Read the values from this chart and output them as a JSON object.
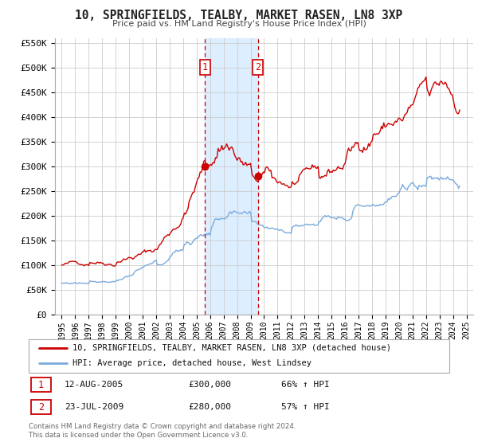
{
  "title": "10, SPRINGFIELDS, TEALBY, MARKET RASEN, LN8 3XP",
  "subtitle": "Price paid vs. HM Land Registry's House Price Index (HPI)",
  "legend_line1": "10, SPRINGFIELDS, TEALBY, MARKET RASEN, LN8 3XP (detached house)",
  "legend_line2": "HPI: Average price, detached house, West Lindsey",
  "transaction1_label": "1",
  "transaction1_date": "12-AUG-2005",
  "transaction1_price": "£300,000",
  "transaction1_hpi": "66% ↑ HPI",
  "transaction1_year": 2005.617,
  "transaction1_value": 300000,
  "transaction2_label": "2",
  "transaction2_date": "23-JUL-2009",
  "transaction2_price": "£280,000",
  "transaction2_hpi": "57% ↑ HPI",
  "transaction2_year": 2009.556,
  "transaction2_value": 280000,
  "red_color": "#cc0000",
  "blue_color": "#7aaadd",
  "highlight_color": "#ddeeff",
  "background_color": "#ffffff",
  "grid_color": "#cccccc",
  "ylim": [
    0,
    560000
  ],
  "yticks": [
    0,
    50000,
    100000,
    150000,
    200000,
    250000,
    300000,
    350000,
    400000,
    450000,
    500000,
    550000
  ],
  "ytick_labels": [
    "£0",
    "£50K",
    "£100K",
    "£150K",
    "£200K",
    "£250K",
    "£300K",
    "£350K",
    "£400K",
    "£450K",
    "£500K",
    "£550K"
  ],
  "xlim": [
    1994.5,
    2025.5
  ],
  "footer_line1": "Contains HM Land Registry data © Crown copyright and database right 2024.",
  "footer_line2": "This data is licensed under the Open Government Licence v3.0."
}
